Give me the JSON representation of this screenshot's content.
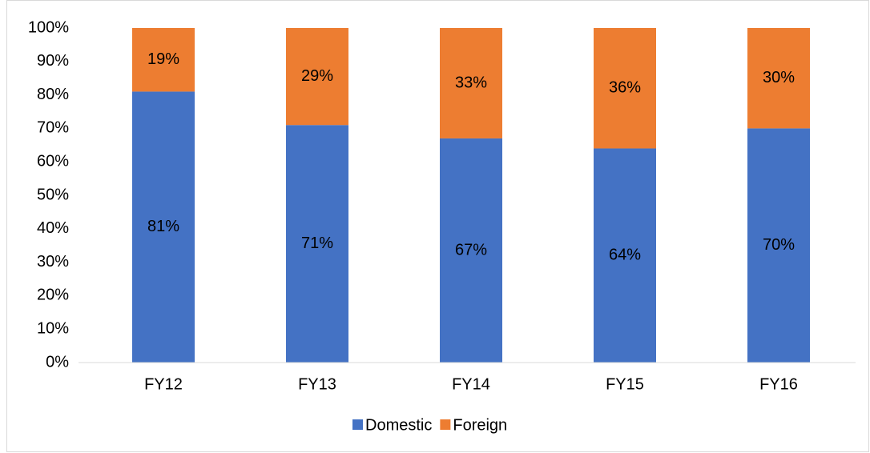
{
  "chart_data": {
    "type": "stacked_bar",
    "categories": [
      "FY12",
      "FY13",
      "FY14",
      "FY15",
      "FY16"
    ],
    "series": [
      {
        "name": "Domestic",
        "color": "#4472c4",
        "values": [
          81,
          71,
          67,
          64,
          70
        ],
        "value_labels": [
          "81%",
          "71%",
          "67%",
          "64%",
          "70%"
        ]
      },
      {
        "name": "Foreign",
        "color": "#ed7d31",
        "values": [
          19,
          29,
          33,
          36,
          30
        ],
        "value_labels": [
          "19%",
          "29%",
          "33%",
          "36%",
          "30%"
        ]
      }
    ],
    "ylim": [
      0,
      100
    ],
    "yticks": [
      {
        "value": 0,
        "label": "0%"
      },
      {
        "value": 10,
        "label": "10%"
      },
      {
        "value": 20,
        "label": "20%"
      },
      {
        "value": 30,
        "label": "30%"
      },
      {
        "value": 40,
        "label": "40%"
      },
      {
        "value": 50,
        "label": "50%"
      },
      {
        "value": 60,
        "label": "60%"
      },
      {
        "value": 70,
        "label": "70%"
      },
      {
        "value": 80,
        "label": "80%"
      },
      {
        "value": 90,
        "label": "90%"
      },
      {
        "value": 100,
        "label": "100%"
      }
    ],
    "grid": false,
    "legend": "bottom"
  }
}
